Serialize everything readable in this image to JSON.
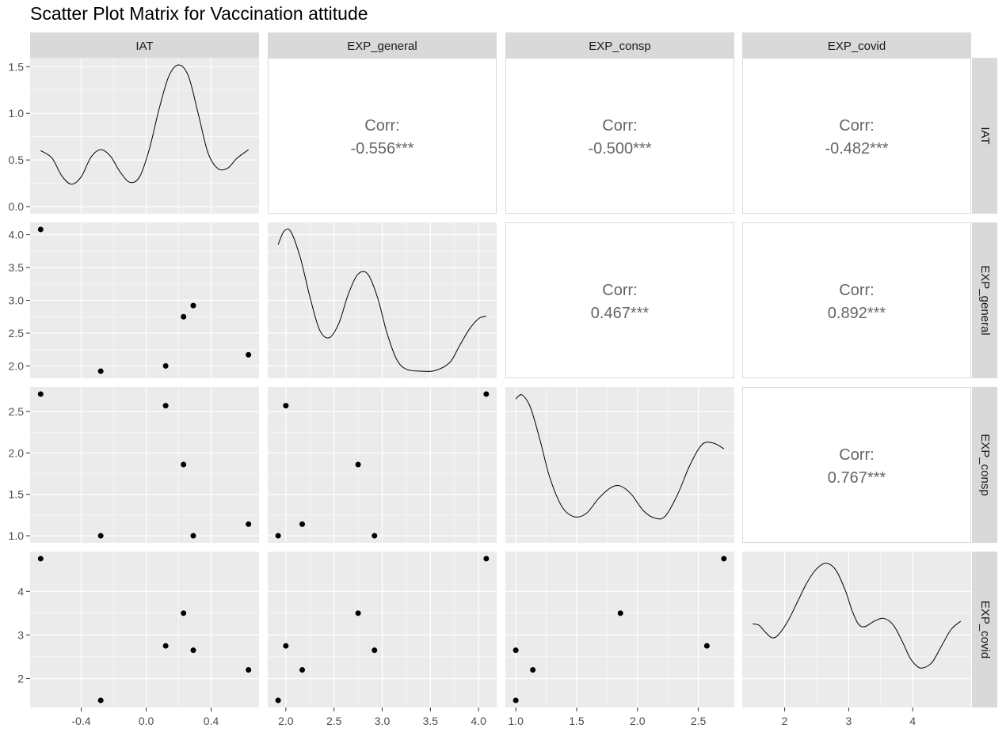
{
  "title": "Scatter Plot Matrix for Vaccination attitude",
  "variables": [
    "IAT",
    "EXP_general",
    "EXP_consp",
    "EXP_covid"
  ],
  "colors": {
    "panel_bg": "#EBEBEB",
    "strip_bg": "#D9D9D9",
    "grid_major": "#FFFFFF",
    "corr_text": "#666666",
    "axis_text": "#4D4D4D",
    "point": "#000000",
    "line": "#000000"
  },
  "chart_data": {
    "type": "scatter",
    "subtype": "scatterplot-matrix",
    "title": "Scatter Plot Matrix for Vaccination attitude",
    "variables": [
      "IAT",
      "EXP_general",
      "EXP_consp",
      "EXP_covid"
    ],
    "observations": [
      {
        "IAT": -0.65,
        "EXP_general": 4.08,
        "EXP_consp": 2.71,
        "EXP_covid": 4.75
      },
      {
        "IAT": -0.28,
        "EXP_general": 1.92,
        "EXP_consp": 1.0,
        "EXP_covid": 1.5
      },
      {
        "IAT": 0.12,
        "EXP_general": 2.0,
        "EXP_consp": 2.57,
        "EXP_covid": 2.75
      },
      {
        "IAT": 0.23,
        "EXP_general": 2.75,
        "EXP_consp": 1.86,
        "EXP_covid": 3.5
      },
      {
        "IAT": 0.29,
        "EXP_general": 2.92,
        "EXP_consp": 1.0,
        "EXP_covid": 2.65
      },
      {
        "IAT": 0.63,
        "EXP_general": 2.17,
        "EXP_consp": 1.14,
        "EXP_covid": 2.2
      }
    ],
    "correlations": [
      {
        "row": "IAT",
        "col": "EXP_general",
        "label": "Corr:",
        "value": "-0.556***"
      },
      {
        "row": "IAT",
        "col": "EXP_consp",
        "label": "Corr:",
        "value": "-0.500***"
      },
      {
        "row": "IAT",
        "col": "EXP_covid",
        "label": "Corr:",
        "value": "-0.482***"
      },
      {
        "row": "EXP_general",
        "col": "EXP_consp",
        "label": "Corr:",
        "value": "0.467***"
      },
      {
        "row": "EXP_general",
        "col": "EXP_covid",
        "label": "Corr:",
        "value": "0.892***"
      },
      {
        "row": "EXP_consp",
        "col": "EXP_covid",
        "label": "Corr:",
        "value": "0.767***"
      }
    ],
    "densities": {
      "IAT": [
        [
          -0.65,
          0.6
        ],
        [
          -0.58,
          0.52
        ],
        [
          -0.52,
          0.33
        ],
        [
          -0.46,
          0.24
        ],
        [
          -0.4,
          0.32
        ],
        [
          -0.34,
          0.53
        ],
        [
          -0.28,
          0.61
        ],
        [
          -0.22,
          0.54
        ],
        [
          -0.16,
          0.37
        ],
        [
          -0.1,
          0.26
        ],
        [
          -0.04,
          0.32
        ],
        [
          0.02,
          0.62
        ],
        [
          0.08,
          1.05
        ],
        [
          0.14,
          1.4
        ],
        [
          0.2,
          1.52
        ],
        [
          0.26,
          1.4
        ],
        [
          0.32,
          1.0
        ],
        [
          0.38,
          0.58
        ],
        [
          0.44,
          0.41
        ],
        [
          0.5,
          0.41
        ],
        [
          0.56,
          0.52
        ],
        [
          0.63,
          0.61
        ]
      ],
      "EXP_general": [
        [
          1.92,
          3.85
        ],
        [
          1.98,
          4.05
        ],
        [
          2.05,
          4.05
        ],
        [
          2.15,
          3.65
        ],
        [
          2.25,
          3.05
        ],
        [
          2.35,
          2.55
        ],
        [
          2.45,
          2.43
        ],
        [
          2.55,
          2.65
        ],
        [
          2.65,
          3.1
        ],
        [
          2.75,
          3.4
        ],
        [
          2.85,
          3.4
        ],
        [
          2.95,
          3.05
        ],
        [
          3.05,
          2.5
        ],
        [
          3.15,
          2.1
        ],
        [
          3.25,
          1.95
        ],
        [
          3.4,
          1.92
        ],
        [
          3.55,
          1.93
        ],
        [
          3.7,
          2.05
        ],
        [
          3.8,
          2.3
        ],
        [
          3.9,
          2.55
        ],
        [
          4.0,
          2.72
        ],
        [
          4.08,
          2.76
        ]
      ],
      "EXP_consp": [
        [
          1.0,
          2.65
        ],
        [
          1.05,
          2.7
        ],
        [
          1.12,
          2.55
        ],
        [
          1.2,
          2.15
        ],
        [
          1.28,
          1.7
        ],
        [
          1.38,
          1.35
        ],
        [
          1.48,
          1.23
        ],
        [
          1.58,
          1.27
        ],
        [
          1.68,
          1.45
        ],
        [
          1.78,
          1.58
        ],
        [
          1.86,
          1.6
        ],
        [
          1.95,
          1.5
        ],
        [
          2.05,
          1.3
        ],
        [
          2.15,
          1.21
        ],
        [
          2.23,
          1.24
        ],
        [
          2.33,
          1.5
        ],
        [
          2.43,
          1.85
        ],
        [
          2.53,
          2.1
        ],
        [
          2.62,
          2.12
        ],
        [
          2.71,
          2.05
        ]
      ],
      "EXP_covid": [
        [
          1.5,
          0.56
        ],
        [
          1.6,
          0.55
        ],
        [
          1.7,
          0.5
        ],
        [
          1.8,
          0.46
        ],
        [
          1.9,
          0.48
        ],
        [
          2.05,
          0.58
        ],
        [
          2.2,
          0.72
        ],
        [
          2.35,
          0.86
        ],
        [
          2.5,
          0.96
        ],
        [
          2.65,
          1.0
        ],
        [
          2.8,
          0.95
        ],
        [
          2.95,
          0.8
        ],
        [
          3.05,
          0.66
        ],
        [
          3.15,
          0.56
        ],
        [
          3.25,
          0.54
        ],
        [
          3.4,
          0.58
        ],
        [
          3.55,
          0.6
        ],
        [
          3.7,
          0.55
        ],
        [
          3.85,
          0.42
        ],
        [
          3.95,
          0.32
        ],
        [
          4.05,
          0.26
        ],
        [
          4.15,
          0.24
        ],
        [
          4.3,
          0.28
        ],
        [
          4.45,
          0.4
        ],
        [
          4.6,
          0.52
        ],
        [
          4.75,
          0.58
        ]
      ]
    },
    "x_axis_ticks": {
      "IAT": [
        "-0.4",
        "0.0",
        "0.4"
      ],
      "EXP_general": [
        "2.0",
        "2.5",
        "3.0",
        "3.5",
        "4.0"
      ],
      "EXP_consp": [
        "1.0",
        "1.5",
        "2.0",
        "2.5"
      ],
      "EXP_covid": [
        "2",
        "3",
        "4"
      ]
    },
    "x_axis_values": {
      "IAT": [
        -0.4,
        0.0,
        0.4
      ],
      "EXP_general": [
        2.0,
        2.5,
        3.0,
        3.5,
        4.0
      ],
      "EXP_consp": [
        1.0,
        1.5,
        2.0,
        2.5
      ],
      "EXP_covid": [
        2,
        3,
        4
      ]
    },
    "x_ranges": {
      "IAT": [
        -0.715,
        0.695
      ],
      "EXP_general": [
        1.812,
        4.188
      ],
      "EXP_consp": [
        0.9145,
        2.7955
      ],
      "EXP_covid": [
        1.3375,
        4.9125
      ]
    },
    "y_axis_ticks": {
      "IAT": [
        "0.0",
        "0.5",
        "1.0",
        "1.5"
      ],
      "EXP_general": [
        "2.0",
        "2.5",
        "3.0",
        "3.5",
        "4.0"
      ],
      "EXP_consp": [
        "1.0",
        "1.5",
        "2.0",
        "2.5"
      ],
      "EXP_covid": [
        "2",
        "3",
        "4"
      ]
    },
    "y_axis_values": {
      "IAT": [
        0.0,
        0.5,
        1.0,
        1.5
      ],
      "EXP_general": [
        2.0,
        2.5,
        3.0,
        3.5,
        4.0
      ],
      "EXP_consp": [
        1.0,
        1.5,
        2.0,
        2.5
      ],
      "EXP_covid": [
        2,
        3,
        4
      ]
    },
    "y_ranges_row1_density": [
      -0.076,
      1.596
    ]
  }
}
